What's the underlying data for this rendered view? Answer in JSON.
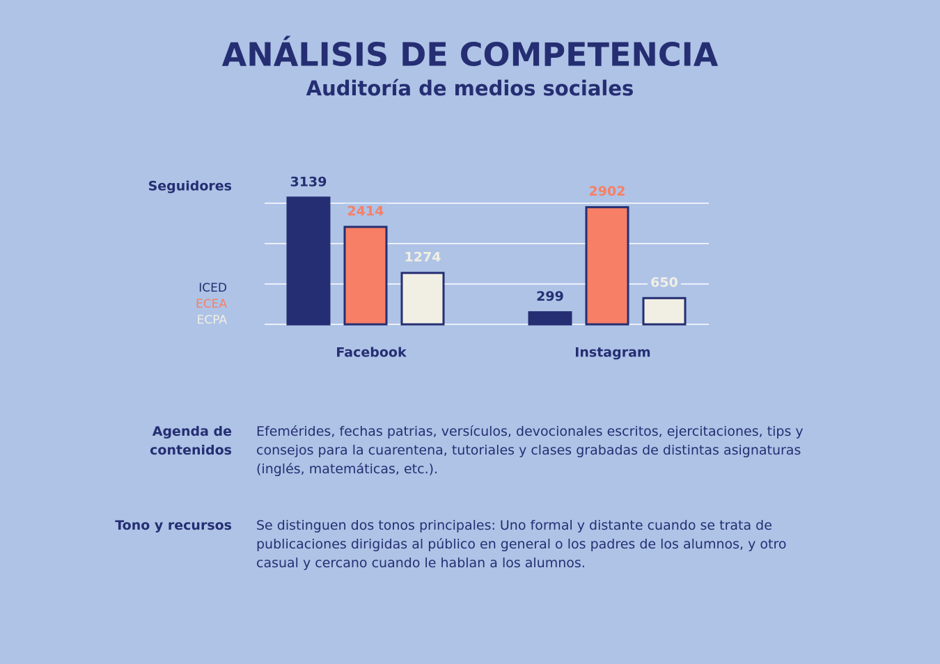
{
  "header": {
    "title": "ANÁLISIS DE COMPETENCIA",
    "subtitle": "Auditoría de medios sociales"
  },
  "chart_data": {
    "type": "bar",
    "y_label": "Seguidores",
    "categories": [
      "Facebook",
      "Instagram"
    ],
    "series": [
      {
        "name": "ICED",
        "color": "#252e72",
        "values": [
          3139,
          299
        ]
      },
      {
        "name": "ECEA",
        "color": "#f77f66",
        "values": [
          2414,
          2902
        ]
      },
      {
        "name": "ECPA",
        "color": "#f1efe3",
        "values": [
          1274,
          650
        ]
      }
    ],
    "ylim": [
      0,
      3200
    ],
    "yticks": [
      0,
      1000,
      2000,
      3000
    ],
    "grid": true
  },
  "sections": [
    {
      "label": "Agenda de contenidos",
      "text": "Efemérides, fechas patrias, versículos, devocionales escritos, ejercitaciones, tips y consejos para la cuarentena, tutoriales y clases grabadas de distintas asignaturas (inglés, matemáticas, etc.)."
    },
    {
      "label": "Tono y recursos",
      "text": "Se distinguen dos tonos principales: Uno formal y distante cuando se trata de publicaciones dirigidas al público en general o los padres de los alumnos, y otro casual y cercano cuando le hablan a los alumnos."
    }
  ]
}
